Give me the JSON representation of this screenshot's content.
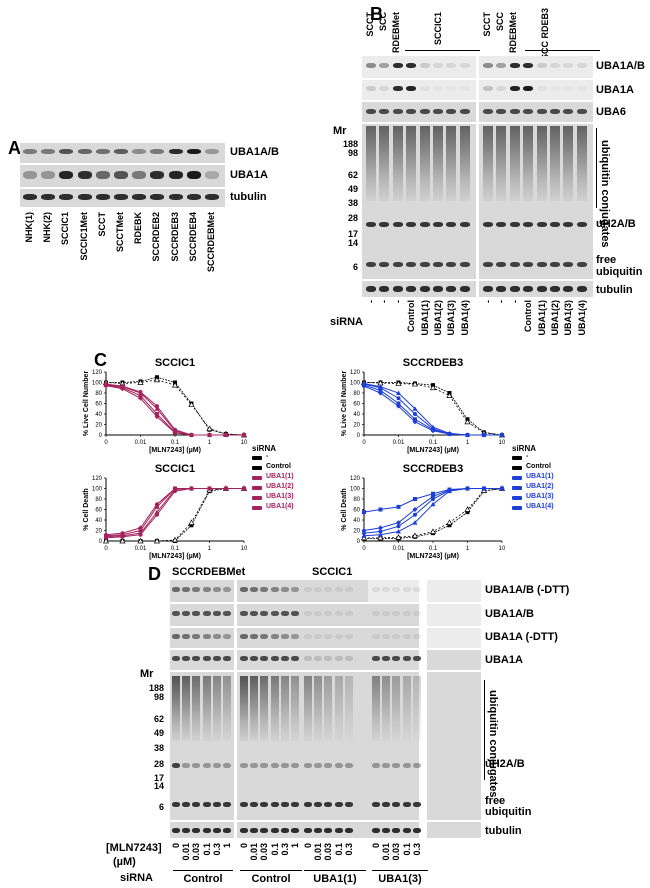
{
  "panelA": {
    "letter": "A",
    "right_labels": [
      "UBA1A/B",
      "UBA1A",
      "tubulin"
    ],
    "lanes": [
      "NHK(1)",
      "NHK(2)",
      "SCCIC1",
      "SCCIC1Met",
      "SCCT",
      "SCCTMet",
      "RDEBK",
      "SCCRDEB2",
      "SCCRDEB3",
      "SCCRDEB4",
      "SCCRDEBMet"
    ]
  },
  "panelB": {
    "letter": "B",
    "top_lanes_left": [
      "SCCT",
      "SCC",
      "RDEBMet"
    ],
    "group_left": "SCCIC1",
    "top_lanes_right": [
      "SCCT",
      "SCC",
      "RDEBMet"
    ],
    "group_right": "SCC RDEB3",
    "right_labels": [
      "UBA1A/B",
      "UBA1A",
      "UBA6",
      "uH2A/B",
      "free",
      "ubiquitin",
      "tubulin"
    ],
    "conjugates_label": "ubiquitin conjugates",
    "mr_label": "Mr",
    "mr_ticks": [
      "188",
      "98",
      "62",
      "49",
      "38",
      "28",
      "17",
      "14",
      "6"
    ],
    "sirna_label": "siRNA",
    "sirna_lanes": [
      "-",
      "-",
      "-",
      "Control",
      "UBA1(1)",
      "UBA1(2)",
      "UBA1(3)",
      "UBA1(4)"
    ]
  },
  "panelC": {
    "letter": "C",
    "legend_title": "siRNA",
    "legend_left": [
      "-",
      "Control",
      "UBA1(1)",
      "UBA1(2)",
      "UBA1(3)",
      "UBA1(4)"
    ],
    "legend_right": [
      "-",
      "Control",
      "UBA1(1)",
      "UBA1(2)",
      "UBA1(3)",
      "UBA1(4)"
    ],
    "colors": {
      "left": "#a3245c",
      "right": "#1e3fd6",
      "neutral": "#000000"
    }
  },
  "chart_data": [
    {
      "type": "line",
      "title": "SCCIC1",
      "xlabel": "[MLN7243] (µM)",
      "ylabel": "% Live Cell Number",
      "xscale": "log",
      "xlim": [
        0.001,
        10
      ],
      "ylim": [
        0,
        120
      ],
      "x": [
        0.001,
        0.003,
        0.01,
        0.03,
        0.1,
        0.3,
        1,
        3,
        10
      ],
      "series": [
        {
          "name": "-",
          "values": [
            100,
            100,
            102,
            110,
            100,
            60,
            10,
            2,
            0
          ]
        },
        {
          "name": "Control",
          "values": [
            100,
            98,
            100,
            105,
            95,
            58,
            12,
            2,
            0
          ]
        },
        {
          "name": "UBA1(1)",
          "values": [
            95,
            90,
            75,
            40,
            5,
            0,
            0,
            0,
            0
          ]
        },
        {
          "name": "UBA1(2)",
          "values": [
            96,
            92,
            80,
            50,
            8,
            0,
            0,
            0,
            0
          ]
        },
        {
          "name": "UBA1(3)",
          "values": [
            94,
            88,
            70,
            35,
            4,
            0,
            0,
            0,
            0
          ]
        },
        {
          "name": "UBA1(4)",
          "values": [
            97,
            93,
            82,
            55,
            10,
            0,
            0,
            0,
            0
          ]
        }
      ]
    },
    {
      "type": "line",
      "title": "SCCRDEB3",
      "xlabel": "[MLN7243] (µM)",
      "ylabel": "% Live Cell Number",
      "xscale": "log",
      "xlim": [
        0.001,
        10
      ],
      "ylim": [
        0,
        120
      ],
      "x": [
        0.001,
        0.003,
        0.01,
        0.03,
        0.1,
        0.3,
        1,
        3,
        10
      ],
      "series": [
        {
          "name": "-",
          "values": [
            100,
            100,
            100,
            98,
            95,
            80,
            30,
            5,
            0
          ]
        },
        {
          "name": "Control",
          "values": [
            100,
            99,
            98,
            97,
            90,
            75,
            25,
            4,
            0
          ]
        },
        {
          "name": "UBA1(1)",
          "values": [
            95,
            85,
            60,
            30,
            10,
            2,
            0,
            0,
            0
          ]
        },
        {
          "name": "UBA1(2)",
          "values": [
            98,
            92,
            80,
            50,
            15,
            3,
            0,
            0,
            0
          ]
        },
        {
          "name": "UBA1(3)",
          "values": [
            93,
            80,
            55,
            25,
            8,
            2,
            0,
            0,
            0
          ]
        },
        {
          "name": "UBA1(4)",
          "values": [
            97,
            90,
            70,
            40,
            12,
            2,
            0,
            0,
            0
          ]
        }
      ]
    },
    {
      "type": "line",
      "title": "SCCIC1",
      "xlabel": "[MLN7243] (µM)",
      "ylabel": "% Cell Death",
      "xscale": "log",
      "xlim": [
        0.001,
        10
      ],
      "ylim": [
        0,
        120
      ],
      "x": [
        0.001,
        0.003,
        0.01,
        0.03,
        0.1,
        0.3,
        1,
        3,
        10
      ],
      "series": [
        {
          "name": "-",
          "values": [
            0,
            0,
            0,
            0,
            0,
            30,
            95,
            100,
            100
          ]
        },
        {
          "name": "Control",
          "values": [
            0,
            0,
            0,
            0,
            2,
            35,
            97,
            100,
            100
          ]
        },
        {
          "name": "UBA1(1)",
          "values": [
            10,
            12,
            20,
            65,
            100,
            100,
            100,
            100,
            100
          ]
        },
        {
          "name": "UBA1(2)",
          "values": [
            8,
            10,
            15,
            55,
            98,
            100,
            100,
            100,
            100
          ]
        },
        {
          "name": "UBA1(3)",
          "values": [
            12,
            15,
            25,
            70,
            100,
            100,
            100,
            100,
            100
          ]
        },
        {
          "name": "UBA1(4)",
          "values": [
            6,
            8,
            12,
            50,
            95,
            100,
            100,
            100,
            100
          ]
        }
      ]
    },
    {
      "type": "line",
      "title": "SCCRDEB3",
      "xlabel": "[MLN7243] (µM)",
      "ylabel": "% Cell Death",
      "xscale": "log",
      "xlim": [
        0.001,
        10
      ],
      "ylim": [
        0,
        120
      ],
      "x": [
        0.001,
        0.003,
        0.01,
        0.03,
        0.1,
        0.3,
        1,
        3,
        10
      ],
      "series": [
        {
          "name": "-",
          "values": [
            5,
            5,
            5,
            8,
            15,
            30,
            55,
            95,
            100
          ]
        },
        {
          "name": "Control",
          "values": [
            6,
            6,
            7,
            10,
            18,
            35,
            60,
            96,
            100
          ]
        },
        {
          "name": "UBA1(1)",
          "values": [
            55,
            60,
            65,
            80,
            90,
            98,
            100,
            100,
            100
          ]
        },
        {
          "name": "UBA1(2)",
          "values": [
            10,
            12,
            18,
            35,
            70,
            95,
            100,
            100,
            100
          ]
        },
        {
          "name": "UBA1(3)",
          "values": [
            20,
            25,
            35,
            60,
            85,
            97,
            100,
            100,
            100
          ]
        },
        {
          "name": "UBA1(4)",
          "values": [
            15,
            18,
            28,
            50,
            80,
            96,
            100,
            100,
            100
          ]
        }
      ]
    }
  ],
  "panelD": {
    "letter": "D",
    "group_left": "SCCRDEBMet",
    "group_right": "SCCIC1",
    "right_labels": [
      "UBA1A/B (-DTT)",
      "UBA1A/B",
      "UBA1A (-DTT)",
      "UBA1A",
      "uH2A/B",
      "free",
      "ubiquitin",
      "tubulin"
    ],
    "conjugates_label": "ubiquitin conjugates",
    "mr_label": "Mr",
    "mr_ticks": [
      "188",
      "98",
      "62",
      "49",
      "38",
      "28",
      "17",
      "14",
      "6"
    ],
    "drug_label": "[MLN7243]",
    "unit_label": "(µM)",
    "conc_block1": [
      "0",
      "0.01",
      "0.03",
      "0.1",
      "0.3",
      "1"
    ],
    "conc_block2": [
      "0",
      "0.01",
      "0.03",
      "0.1",
      "0.3",
      "1"
    ],
    "conc_block3": [
      "0",
      "0.01",
      "0.03",
      "0.1",
      "0.3"
    ],
    "conc_block4": [
      "0",
      "0.01",
      "0.03",
      "0.1",
      "0.3"
    ],
    "sirna_label": "siRNA",
    "sirna_groups": [
      "Control",
      "Control",
      "UBA1(1)",
      "UBA1(3)"
    ]
  }
}
